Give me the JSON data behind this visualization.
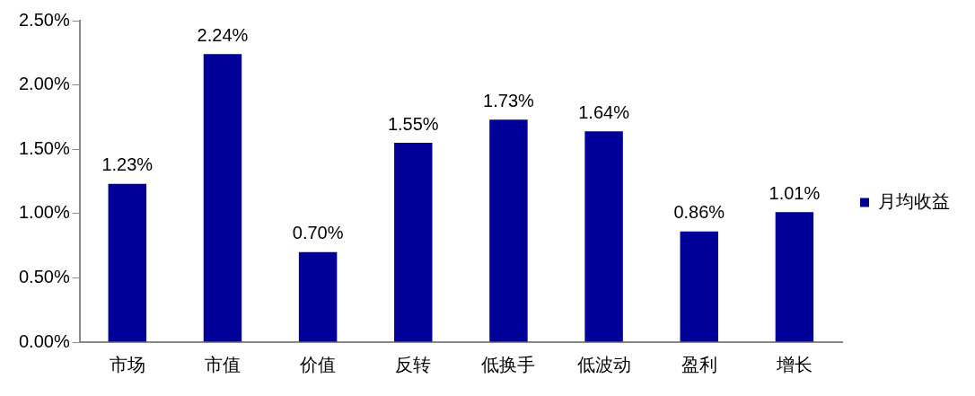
{
  "chart_data": {
    "type": "bar",
    "categories": [
      "市场",
      "市值",
      "价值",
      "反转",
      "低换手",
      "低波动",
      "盈利",
      "增长"
    ],
    "series": [
      {
        "name": "月均收益",
        "color": "#000099",
        "values": [
          1.23,
          2.24,
          0.7,
          1.55,
          1.73,
          1.64,
          0.86,
          1.01
        ],
        "value_labels": [
          "1.23%",
          "2.24%",
          "0.70%",
          "1.55%",
          "1.73%",
          "1.64%",
          "0.86%",
          "1.01%"
        ]
      }
    ],
    "ylim": [
      0,
      2.5
    ],
    "yticks": [
      {
        "value": 0,
        "label": "0.00%"
      },
      {
        "value": 0.5,
        "label": "0.50%"
      },
      {
        "value": 1,
        "label": "1.00%"
      },
      {
        "value": 1.5,
        "label": "1.50%"
      },
      {
        "value": 2,
        "label": "2.00%"
      },
      {
        "value": 2.5,
        "label": "2.50%"
      }
    ],
    "grid": false,
    "legend": "right"
  }
}
